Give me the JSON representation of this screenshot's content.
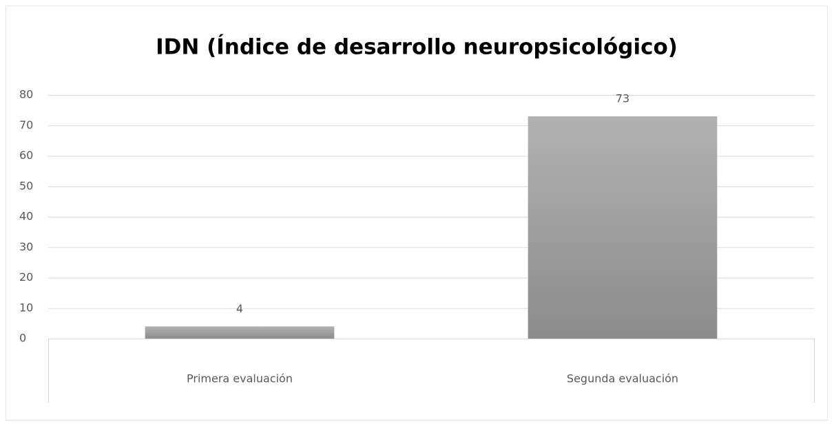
{
  "chart_data": {
    "type": "bar",
    "title": "IDN (Índice de desarrollo neuropsicológico)",
    "categories": [
      "Primera evaluación",
      "Segunda evaluación"
    ],
    "values": [
      4,
      73
    ],
    "color": "#a6a6a6",
    "ylim": [
      0,
      80
    ],
    "yticks": [
      0,
      10,
      20,
      30,
      40,
      50,
      60,
      70,
      80
    ],
    "grid": true
  }
}
